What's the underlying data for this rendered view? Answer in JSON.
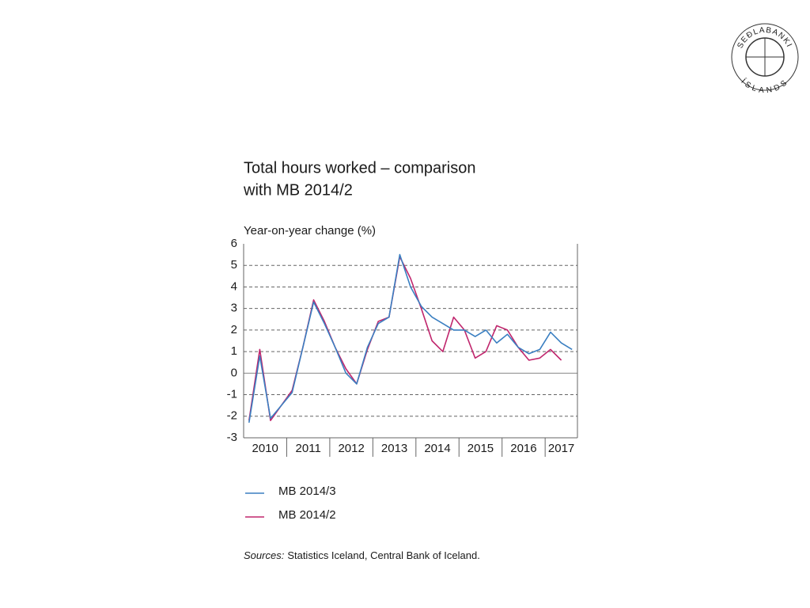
{
  "chart_data": {
    "type": "line",
    "title": [
      "Total hours worked – comparison",
      "with MB 2014/2"
    ],
    "y_label": "Year-on-year change (%)",
    "categories": [
      "2010",
      null,
      null,
      null,
      "2011",
      null,
      null,
      null,
      "2012",
      null,
      null,
      null,
      "2013",
      null,
      null,
      null,
      "2014",
      null,
      null,
      null,
      "2015",
      null,
      null,
      null,
      "2016",
      null,
      null,
      null,
      "2017",
      null,
      null
    ],
    "series": [
      {
        "name": "MB 2014/3",
        "color": "#3a7fc1",
        "values": [
          -2.3,
          0.8,
          -2.1,
          -1.5,
          -0.9,
          1.2,
          3.3,
          2.3,
          1.2,
          0.0,
          -0.5,
          1.2,
          2.3,
          2.6,
          5.5,
          4.0,
          3.1,
          2.6,
          2.3,
          2.0,
          2.0,
          1.7,
          2.0,
          1.4,
          1.8,
          1.2,
          0.9,
          1.1,
          1.9,
          1.4,
          1.1
        ]
      },
      {
        "name": "MB 2014/2",
        "color": "#c0266d",
        "values": [
          -2.2,
          1.1,
          -2.2,
          -1.5,
          -0.8,
          1.2,
          3.4,
          2.4,
          1.2,
          0.2,
          -0.5,
          1.1,
          2.4,
          2.6,
          5.4,
          4.4,
          3.0,
          1.5,
          1.0,
          2.6,
          2.0,
          0.7,
          1.0,
          2.2,
          2.0,
          1.2,
          0.6,
          0.7,
          1.1,
          0.6,
          null
        ]
      }
    ],
    "ylim": [
      -3,
      6
    ],
    "yticks": [
      -3,
      -2,
      -1,
      0,
      1,
      2,
      3,
      4,
      5,
      6
    ],
    "grid": true,
    "legend": "bottom",
    "source_label": "Sources:",
    "source": "Statistics Iceland, Central Bank of Iceland."
  },
  "logo": {
    "top": "SEÐLABANKI",
    "bottom": "ÍSLANDS"
  }
}
